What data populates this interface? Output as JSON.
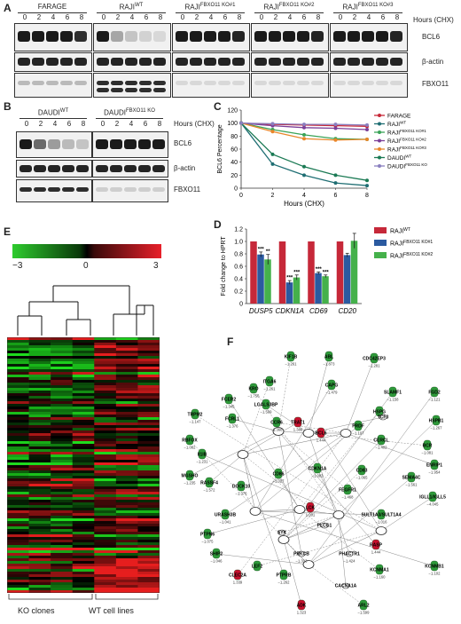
{
  "panel_A": {
    "label": "A",
    "groups": [
      {
        "name": "FARAGE",
        "sup": ""
      },
      {
        "name": "RAJI",
        "sup": "WT"
      },
      {
        "name": "RAJI",
        "sup": "FBXO11 KO#1"
      },
      {
        "name": "RAJI",
        "sup": "FBXO11 KO#2"
      },
      {
        "name": "RAJI",
        "sup": "FBXO11 KO#3"
      }
    ],
    "lanes": [
      "0",
      "2",
      "4",
      "6",
      "8"
    ],
    "hours_label": "Hours (CHX)",
    "rows": [
      "BCL6",
      "β-actin",
      "FBXO11"
    ],
    "bcl6_intensity": [
      [
        1,
        1,
        1,
        1,
        0.9
      ],
      [
        1,
        0.3,
        0.15,
        0.08,
        0.05
      ],
      [
        1,
        1,
        1,
        1,
        0.95
      ],
      [
        1,
        1,
        1,
        1,
        0.95
      ],
      [
        1,
        1,
        1,
        1,
        0.95
      ]
    ],
    "fbxo11_intensity": [
      [
        0.2,
        0.2,
        0.2,
        0.2,
        0.2
      ],
      [
        0.9,
        0.9,
        0.9,
        0.9,
        0.9
      ],
      [
        0.05,
        0.05,
        0.05,
        0.05,
        0.05
      ],
      [
        0.05,
        0.05,
        0.05,
        0.05,
        0.05
      ],
      [
        0.05,
        0.05,
        0.05,
        0.05,
        0.05
      ]
    ]
  },
  "panel_B": {
    "label": "B",
    "groups": [
      {
        "name": "DAUDI",
        "sup": "WT"
      },
      {
        "name": "DAUDI",
        "sup": "FBXO11 KO"
      }
    ],
    "lanes": [
      "0",
      "2",
      "4",
      "6",
      "8"
    ],
    "hours_label": "Hours (CHX)",
    "rows": [
      "BCL6",
      "β-actin",
      "FBXO11"
    ],
    "bcl6_intensity": [
      [
        1,
        0.6,
        0.35,
        0.2,
        0.15
      ],
      [
        1,
        1,
        1,
        1,
        1
      ]
    ],
    "fbxo11_intensity": [
      [
        0.9,
        0.9,
        0.9,
        0.9,
        0.9
      ],
      [
        0.1,
        0.1,
        0.1,
        0.1,
        0.1
      ]
    ]
  },
  "panel_C": {
    "label": "C",
    "chart_data": {
      "type": "line",
      "xlabel": "Hours (CHX)",
      "ylabel": "BCL6 Percentage",
      "x": [
        0,
        2,
        4,
        6,
        8
      ],
      "xlim": [
        0,
        8
      ],
      "ylim": [
        0,
        120
      ],
      "yticks": [
        0,
        20,
        40,
        60,
        80,
        100,
        120
      ],
      "xticks": [
        0,
        2,
        4,
        6,
        8
      ],
      "legend_position": "top-right",
      "series": [
        {
          "name": "FARAGE",
          "sup": "",
          "color": "#c62839",
          "values": [
            100,
            98,
            97,
            96,
            95
          ]
        },
        {
          "name": "RAJI",
          "sup": "WT",
          "color": "#1f6e73",
          "values": [
            100,
            37,
            20,
            8,
            4
          ]
        },
        {
          "name": "RAJI",
          "sup": "FBXO11 KO#1",
          "color": "#3aa357",
          "values": [
            100,
            90,
            82,
            76,
            75
          ]
        },
        {
          "name": "RAJI",
          "sup": "FBXO11 KO#2",
          "color": "#7b3f98",
          "values": [
            100,
            96,
            93,
            92,
            90
          ]
        },
        {
          "name": "RAJI",
          "sup": "FBXO11 KO#3",
          "color": "#e8872a",
          "values": [
            100,
            87,
            76,
            74,
            75
          ]
        },
        {
          "name": "DAUDI",
          "sup": "WT",
          "color": "#1b7a54",
          "values": [
            100,
            52,
            33,
            20,
            12
          ]
        },
        {
          "name": "DAUDI",
          "sup": "FBXO11 KO",
          "color": "#8a7fbf",
          "values": [
            100,
            99,
            98,
            98,
            97
          ]
        }
      ]
    }
  },
  "panel_D": {
    "label": "D",
    "chart_data": {
      "type": "bar",
      "ylabel": "Fold change to HPRT",
      "ylim": [
        0,
        1.2
      ],
      "yticks": [
        "0",
        "0.2",
        "0.4",
        "0.6",
        "0.8",
        "1.0",
        "1.2"
      ],
      "categories": [
        "DUSP5",
        "CDKN1A",
        "CD69",
        "CD20"
      ],
      "legend_position": "top-right",
      "series": [
        {
          "name": "RAJI",
          "sup": "WT",
          "color": "#c62839",
          "values": [
            1.0,
            1.0,
            1.0,
            1.0
          ],
          "errors": [
            0,
            0,
            0,
            0
          ]
        },
        {
          "name": "RAJI",
          "sup": "FBXO11 KO#1",
          "color": "#2b5aa0",
          "values": [
            0.79,
            0.34,
            0.49,
            0.78
          ],
          "errors": [
            0.04,
            0.03,
            0.02,
            0.03
          ]
        },
        {
          "name": "RAJI",
          "sup": "FBXO11 KO#2",
          "color": "#45b14b",
          "values": [
            0.71,
            0.42,
            0.44,
            1.01
          ],
          "errors": [
            0.08,
            0.04,
            0.02,
            0.12
          ]
        }
      ],
      "significance": [
        [
          "",
          "***",
          "**"
        ],
        [
          "",
          "***",
          "***"
        ],
        [
          "",
          "***",
          "***"
        ],
        [
          "",
          "",
          ""
        ]
      ]
    }
  },
  "panel_E": {
    "label": "E",
    "scale_ticks": [
      "−3",
      "0",
      "3"
    ],
    "group_labels": [
      "KO clones",
      "WT cell lines"
    ],
    "colors": {
      "low": "#2ecc2e",
      "mid": "#000000",
      "high": "#e8202a"
    }
  },
  "panel_F": {
    "label": "F",
    "nodes": [
      {
        "name": "KIF1B",
        "value": "−1.261"
      },
      {
        "name": "ABL",
        "value": "−1.873"
      },
      {
        "name": "CDC42EP3",
        "value": "−1.281"
      },
      {
        "name": "ITGA6",
        "value": "−1.261"
      },
      {
        "name": "CAPG",
        "value": "−1.479"
      },
      {
        "name": "FCER2",
        "value": "−1.345"
      },
      {
        "name": "KRO",
        "value": "−1.756"
      },
      {
        "name": "SLAMF1",
        "value": "−1.158"
      },
      {
        "name": "FGD2",
        "value": "−1.121"
      },
      {
        "name": "TRPM2",
        "value": "−1.147"
      },
      {
        "name": "FCRL1",
        "value": "−1.376"
      },
      {
        "name": "LGALS3BP",
        "value": "−1.599"
      },
      {
        "name": "CCR6",
        "value": "−1.368"
      },
      {
        "name": "TRAT1",
        "value": "1.386"
      },
      {
        "name": "PRDF",
        "value": "−1.107"
      },
      {
        "name": "HSPG",
        "value": ""
      },
      {
        "name": "HSPB1",
        "value": "−1.267"
      },
      {
        "name": "CERCL",
        "value": "−1.402"
      },
      {
        "name": "RBFOX",
        "value": "−1.082"
      },
      {
        "name": "Il1IB",
        "value": "−1.231"
      },
      {
        "name": "MGSHO",
        "value": "−1.235"
      },
      {
        "name": "BCR",
        "value": "−1.081"
      },
      {
        "name": "ENRIP1",
        "value": "−1.954"
      },
      {
        "name": "RASSF4",
        "value": "−1.572"
      },
      {
        "name": "DOCK10",
        "value": "−1.376"
      },
      {
        "name": "CD86",
        "value": "−1.027"
      },
      {
        "name": "CDKN1A",
        "value": "−1.083"
      },
      {
        "name": "CD83",
        "value": "−1.065"
      },
      {
        "name": "SEMA4C",
        "value": "−1.561"
      },
      {
        "name": "IGLL1/IGLL5",
        "value": "−4.045"
      },
      {
        "name": "FEGFR1",
        "value": "−1.468"
      },
      {
        "name": "TCF3",
        "value": ""
      },
      {
        "name": "URASH3B",
        "value": "−1.041"
      },
      {
        "name": "LCK",
        "value": "1.001"
      },
      {
        "name": "SULT1A3/SULT1A4",
        "value": "−1.016"
      },
      {
        "name": "PTPN6",
        "value": "−1.075"
      },
      {
        "name": "SYK",
        "value": ""
      },
      {
        "name": "PLCG1",
        "value": ""
      },
      {
        "name": "SHIP2",
        "value": "−1.046"
      },
      {
        "name": "LEF2",
        "value": ""
      },
      {
        "name": "PRKCB",
        "value": "−1.313"
      },
      {
        "name": "PHACTR1",
        "value": "−1.424"
      },
      {
        "name": "CLEC2A",
        "value": "1.339"
      },
      {
        "name": "PTPRB",
        "value": "−1.262"
      },
      {
        "name": "KCNMB1",
        "value": "−1.102"
      },
      {
        "name": "KCNMA1",
        "value": "−1.160"
      },
      {
        "name": "CACNA1A",
        "value": ""
      },
      {
        "name": "ADK",
        "value": "1.323"
      },
      {
        "name": "ARL2",
        "value": "−1.599"
      },
      {
        "name": "BCL6",
        "value": "1.444"
      },
      {
        "name": "RASP",
        "value": "1.444"
      }
    ]
  }
}
